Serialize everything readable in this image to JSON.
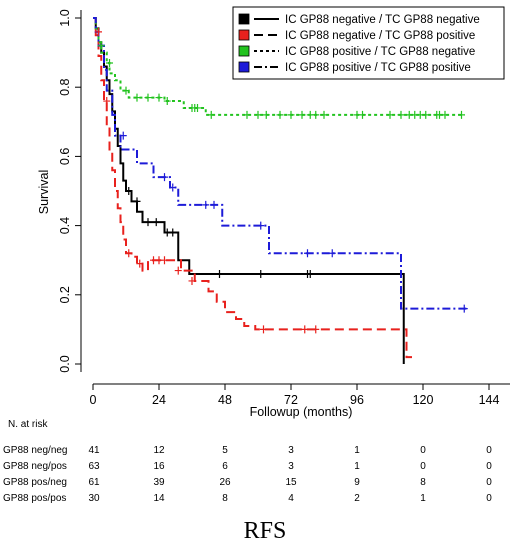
{
  "chart_data": {
    "type": "line",
    "subtype": "kaplan-meier",
    "xlabel": "Followup (months)",
    "ylabel": "Survival",
    "xlim": [
      0,
      144
    ],
    "ylim": [
      0,
      1
    ],
    "xticks": [
      "0",
      "24",
      "48",
      "72",
      "96",
      "120",
      "144"
    ],
    "yticks": [
      "0.0",
      "0.2",
      "0.4",
      "0.6",
      "0.8",
      "1.0"
    ],
    "caption": "RFS",
    "legend_position": "top-right",
    "series": [
      {
        "name": "IC GP88 negative / TC GP88 negative",
        "color": "#000000",
        "dash": "solid",
        "steps": [
          [
            0,
            1.0
          ],
          [
            1,
            0.97
          ],
          [
            2,
            0.93
          ],
          [
            3,
            0.9
          ],
          [
            4,
            0.86
          ],
          [
            5,
            0.82
          ],
          [
            6,
            0.78
          ],
          [
            7,
            0.73
          ],
          [
            8,
            0.68
          ],
          [
            9,
            0.63
          ],
          [
            10,
            0.58
          ],
          [
            11,
            0.53
          ],
          [
            12,
            0.5
          ],
          [
            14,
            0.47
          ],
          [
            16,
            0.44
          ],
          [
            18,
            0.41
          ],
          [
            26,
            0.38
          ],
          [
            31,
            0.3
          ],
          [
            35,
            0.26
          ],
          [
            113,
            0.0
          ]
        ],
        "censored": [
          [
            13,
            0.5
          ],
          [
            16,
            0.47
          ],
          [
            20,
            0.41
          ],
          [
            23,
            0.41
          ],
          [
            27,
            0.38
          ],
          [
            29,
            0.38
          ],
          [
            46,
            0.26
          ],
          [
            61,
            0.26
          ],
          [
            78,
            0.26
          ],
          [
            79,
            0.26
          ]
        ],
        "end_x": 113
      },
      {
        "name": "IC GP88 negative / TC GP88 positive",
        "color": "#e8211d",
        "dash": "longdash",
        "steps": [
          [
            0,
            1.0
          ],
          [
            1,
            0.95
          ],
          [
            2,
            0.89
          ],
          [
            3,
            0.82
          ],
          [
            4,
            0.76
          ],
          [
            5,
            0.69
          ],
          [
            6,
            0.62
          ],
          [
            7,
            0.56
          ],
          [
            8,
            0.5
          ],
          [
            9,
            0.45
          ],
          [
            10,
            0.41
          ],
          [
            11,
            0.36
          ],
          [
            12,
            0.32
          ],
          [
            14,
            0.31
          ],
          [
            16,
            0.29
          ],
          [
            18,
            0.27
          ],
          [
            20,
            0.3
          ],
          [
            32,
            0.27
          ],
          [
            37,
            0.24
          ],
          [
            42,
            0.21
          ],
          [
            45,
            0.18
          ],
          [
            48,
            0.15
          ],
          [
            52,
            0.13
          ],
          [
            55,
            0.11
          ],
          [
            59,
            0.1
          ],
          [
            114,
            0.02
          ]
        ],
        "censored": [
          [
            2,
            0.96
          ],
          [
            5,
            0.76
          ],
          [
            13,
            0.32
          ],
          [
            17,
            0.29
          ],
          [
            22,
            0.3
          ],
          [
            24,
            0.3
          ],
          [
            26,
            0.3
          ],
          [
            31,
            0.27
          ],
          [
            36,
            0.24
          ],
          [
            62,
            0.1
          ],
          [
            77,
            0.1
          ],
          [
            81,
            0.1
          ]
        ],
        "end_x": 116,
        "tail_color": "#9a4d1a"
      },
      {
        "name": "IC GP88 positive / TC GP88 negative",
        "color": "#22c31f",
        "dash": "dotted",
        "steps": [
          [
            0,
            1.0
          ],
          [
            1,
            0.97
          ],
          [
            2,
            0.93
          ],
          [
            3,
            0.9
          ],
          [
            5,
            0.87
          ],
          [
            6,
            0.84
          ],
          [
            8,
            0.82
          ],
          [
            10,
            0.79
          ],
          [
            13,
            0.77
          ],
          [
            26,
            0.76
          ],
          [
            33,
            0.74
          ],
          [
            41,
            0.72
          ]
        ],
        "censored": [
          [
            3,
            0.92
          ],
          [
            6,
            0.87
          ],
          [
            12,
            0.79
          ],
          [
            16,
            0.77
          ],
          [
            20,
            0.77
          ],
          [
            24,
            0.77
          ],
          [
            27,
            0.76
          ],
          [
            36,
            0.74
          ],
          [
            37,
            0.74
          ],
          [
            38,
            0.74
          ],
          [
            43,
            0.72
          ],
          [
            56,
            0.72
          ],
          [
            60,
            0.72
          ],
          [
            63,
            0.72
          ],
          [
            68,
            0.72
          ],
          [
            72,
            0.72
          ],
          [
            76,
            0.72
          ],
          [
            79,
            0.72
          ],
          [
            81,
            0.72
          ],
          [
            84,
            0.72
          ],
          [
            96,
            0.72
          ],
          [
            98,
            0.72
          ],
          [
            108,
            0.72
          ],
          [
            112,
            0.72
          ],
          [
            115,
            0.72
          ],
          [
            117,
            0.72
          ],
          [
            119,
            0.72
          ],
          [
            121,
            0.72
          ],
          [
            125,
            0.72
          ],
          [
            126,
            0.72
          ],
          [
            128,
            0.72
          ],
          [
            134,
            0.72
          ]
        ],
        "end_x": 135
      },
      {
        "name": "IC GP88 positive / TC GP88 positive",
        "color": "#1d1bd8",
        "dash": "dashdot",
        "steps": [
          [
            0,
            1.0
          ],
          [
            1,
            0.96
          ],
          [
            2,
            0.92
          ],
          [
            4,
            0.85
          ],
          [
            5,
            0.79
          ],
          [
            7,
            0.72
          ],
          [
            8,
            0.66
          ],
          [
            10,
            0.62
          ],
          [
            16,
            0.58
          ],
          [
            22,
            0.54
          ],
          [
            28,
            0.51
          ],
          [
            31,
            0.46
          ],
          [
            47,
            0.4
          ],
          [
            64,
            0.32
          ],
          [
            112,
            0.16
          ]
        ],
        "censored": [
          [
            11,
            0.66
          ],
          [
            26,
            0.54
          ],
          [
            29,
            0.51
          ],
          [
            41,
            0.46
          ],
          [
            44,
            0.46
          ],
          [
            61,
            0.4
          ],
          [
            78,
            0.32
          ],
          [
            87,
            0.32
          ],
          [
            135,
            0.16
          ]
        ],
        "end_x": 136
      }
    ],
    "risk_table": {
      "title": "N. at risk",
      "times": [
        "0",
        "24",
        "48",
        "72",
        "96",
        "120",
        "144"
      ],
      "rows": [
        {
          "label": "GP88 neg/neg",
          "values": [
            "41",
            "12",
            "5",
            "3",
            "1",
            "0",
            "0"
          ]
        },
        {
          "label": "GP88 neg/pos",
          "values": [
            "63",
            "16",
            "6",
            "3",
            "1",
            "0",
            "0"
          ]
        },
        {
          "label": "GP88 pos/neg",
          "values": [
            "61",
            "39",
            "26",
            "15",
            "9",
            "8",
            "0"
          ]
        },
        {
          "label": "GP88 pos/pos",
          "values": [
            "30",
            "14",
            "8",
            "4",
            "2",
            "1",
            "0"
          ]
        }
      ]
    }
  }
}
